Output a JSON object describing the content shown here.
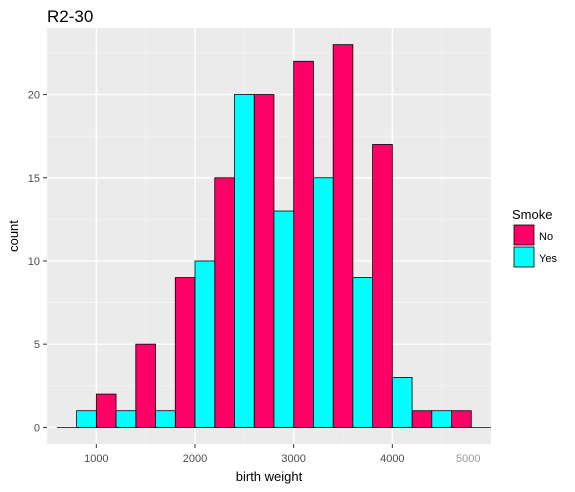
{
  "chart_data": {
    "type": "bar",
    "title": "R2-30",
    "xlabel": "birth weight",
    "ylabel": "count",
    "x_ticks": [
      1000,
      2000,
      3000,
      4000
    ],
    "y_ticks": [
      0,
      5,
      10,
      15,
      20
    ],
    "xlim": [
      500,
      5000
    ],
    "ylim": [
      -1,
      24
    ],
    "bin_width": 200,
    "grid": true,
    "legend": {
      "title": "Smoke",
      "position": "right"
    },
    "series": [
      {
        "name": "No",
        "color": "#ff0066",
        "x": [
          1100,
          1500,
          1900,
          2300,
          2700,
          3100,
          3500,
          3900,
          4300,
          4700
        ],
        "values": [
          2,
          5,
          9,
          15,
          20,
          22,
          23,
          17,
          1,
          1
        ]
      },
      {
        "name": "Yes",
        "color": "#00ffff",
        "x": [
          900,
          1300,
          1700,
          2100,
          2500,
          2900,
          3300,
          3700,
          4100,
          4500
        ],
        "values": [
          1,
          1,
          1,
          10,
          20,
          13,
          15,
          9,
          3,
          1
        ]
      }
    ]
  },
  "watermark": {
    "text": "5000 "
  }
}
